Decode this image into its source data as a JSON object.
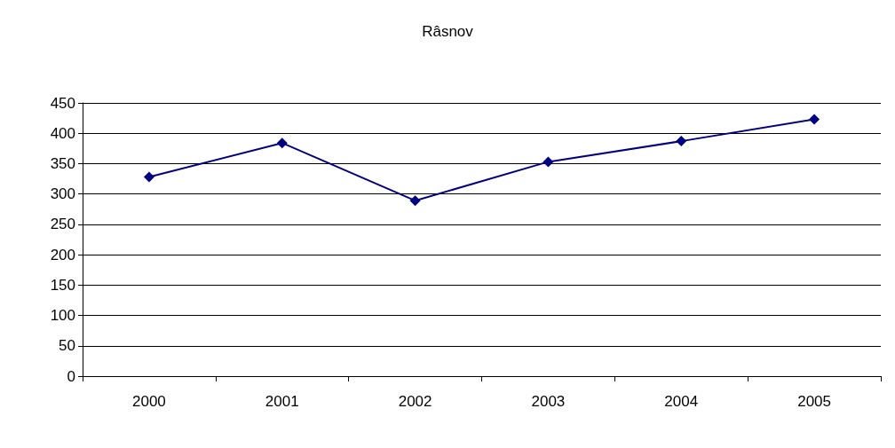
{
  "chart_data": {
    "type": "line",
    "title": "Râsnov",
    "categories": [
      "2000",
      "2001",
      "2002",
      "2003",
      "2004",
      "2005"
    ],
    "series": [
      {
        "color": "#000080",
        "values": [
          328,
          384,
          289,
          353,
          387,
          423
        ]
      }
    ],
    "ylim": [
      0,
      450
    ],
    "yticks": [
      0,
      50,
      100,
      150,
      200,
      250,
      300,
      350,
      400,
      450
    ],
    "grid": "y",
    "marker": "diamond",
    "line_style": "solid"
  }
}
